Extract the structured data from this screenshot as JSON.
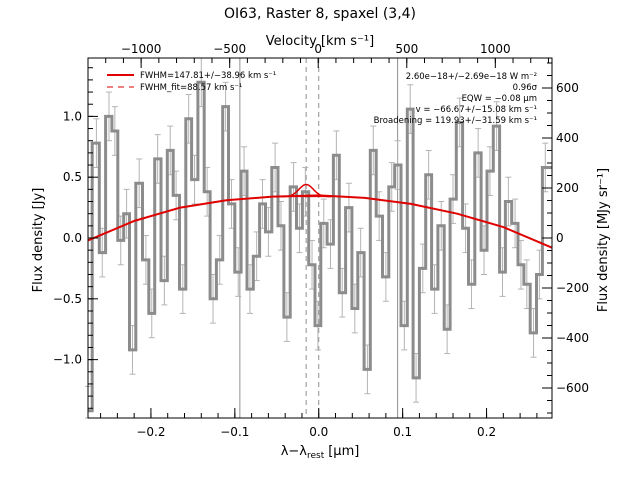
{
  "chart_data": {
    "type": "line",
    "title": "OI63, Raster 8, spaxel (3,4)",
    "xlabel": "λ−λ",
    "xlabel_sub": "rest",
    "xlabel_unit": "[μm]",
    "ylabel": "Flux density [Jy]",
    "ylabel_right": "Flux density [MJy sr⁻¹]",
    "top_xlabel": "Velocity [km s⁻¹]",
    "xlim": [
      -0.275,
      0.278
    ],
    "ylim": [
      -1.48,
      1.48
    ],
    "right_ylim": [
      -720,
      720
    ],
    "top_xlim": [
      -1300,
      1320
    ],
    "x_ticks": [
      -0.2,
      -0.1,
      0.0,
      0.1,
      0.2
    ],
    "x_tick_labels": [
      "−0.2",
      "−0.1",
      "0.0",
      "0.1",
      "0.2"
    ],
    "y_ticks": [
      -1.0,
      -0.5,
      0.0,
      0.5,
      1.0
    ],
    "y_tick_labels": [
      "−1.0",
      "−0.5",
      "0.0",
      "0.5",
      "1.0"
    ],
    "right_ticks": [
      -600,
      -400,
      -200,
      0,
      200,
      400,
      600
    ],
    "right_tick_labels": [
      "−600",
      "−400",
      "−200",
      "0",
      "200",
      "400",
      "600"
    ],
    "top_ticks": [
      -1000,
      -500,
      0,
      500,
      1000
    ],
    "top_tick_labels": [
      "−1000",
      "−500",
      "0",
      "500",
      "1000"
    ],
    "vlines_solid": [
      -0.094,
      0.094
    ],
    "vlines_dashed": [
      -0.015,
      0.0
    ],
    "colors": {
      "spectrum": "#8c8c8c",
      "error": "#b4b4b4",
      "fit": "#e00000",
      "guide": "#909090"
    },
    "legend": {
      "position": "top-left",
      "entries": [
        {
          "label": "FWHM=147.81+/−38.96 km s⁻¹",
          "style": "solid"
        },
        {
          "label": "FWHM_fit=88.57 km s⁻¹",
          "style": "dashed"
        }
      ]
    },
    "annotations": [
      "2.60e−18+/−2.69e−18 W m⁻²",
      "0.96σ",
      "EQW = −0.08 μm",
      "v = −66.67+/−15.08 km s⁻¹",
      "Broadening = 119.93+/−31.59 km s⁻¹"
    ],
    "spectrum": {
      "name": "spectrum",
      "error": 0.2,
      "x": [
        -0.275,
        -0.265,
        -0.258,
        -0.25,
        -0.243,
        -0.236,
        -0.229,
        -0.222,
        -0.214,
        -0.206,
        -0.199,
        -0.192,
        -0.184,
        -0.177,
        -0.17,
        -0.162,
        -0.155,
        -0.148,
        -0.14,
        -0.133,
        -0.126,
        -0.118,
        -0.111,
        -0.104,
        -0.096,
        -0.089,
        -0.082,
        -0.074,
        -0.067,
        -0.06,
        -0.052,
        -0.045,
        -0.038,
        -0.03,
        -0.023,
        -0.016,
        -0.008,
        -0.001,
        0.006,
        0.014,
        0.021,
        0.028,
        0.036,
        0.043,
        0.05,
        0.058,
        0.065,
        0.072,
        0.08,
        0.087,
        0.094,
        0.102,
        0.109,
        0.116,
        0.124,
        0.131,
        0.138,
        0.146,
        0.153,
        0.16,
        0.168,
        0.175,
        0.182,
        0.19,
        0.197,
        0.204,
        0.212,
        0.219,
        0.226,
        0.234,
        0.241,
        0.248,
        0.256,
        0.263,
        0.27
      ],
      "y": [
        -1.42,
        0.78,
        -0.12,
        1.0,
        0.88,
        -0.02,
        0.2,
        -0.92,
        0.45,
        -0.18,
        -0.62,
        0.65,
        -0.35,
        0.72,
        0.35,
        -0.42,
        0.98,
        0.48,
        1.28,
        0.38,
        -0.5,
        -0.18,
        1.08,
        0.28,
        -0.28,
        0.55,
        -0.42,
        -0.15,
        0.28,
        0.05,
        0.58,
        0.1,
        -0.65,
        0.42,
        0.08,
        0.38,
        -0.22,
        -0.72,
        0.12,
        -0.05,
        0.68,
        -0.45,
        0.25,
        -0.58,
        -0.12,
        -1.08,
        0.72,
        0.18,
        -0.32,
        0.42,
        0.6,
        -0.72,
        1.06,
        -1.15,
        -0.25,
        0.52,
        -0.42,
        0.1,
        -0.75,
        0.32,
        0.95,
        0.08,
        -0.38,
        0.7,
        -0.1,
        0.55,
        0.92,
        -0.28,
        0.3,
        0.12,
        -0.22,
        -0.38,
        -0.78,
        -0.3,
        0.58
      ]
    },
    "continuum": {
      "name": "continuum",
      "x": [
        -0.275,
        -0.22,
        -0.165,
        -0.11,
        -0.055,
        0.0,
        0.055,
        0.11,
        0.165,
        0.22,
        0.278
      ],
      "y": [
        -0.02,
        0.14,
        0.25,
        0.31,
        0.34,
        0.35,
        0.33,
        0.28,
        0.2,
        0.09,
        -0.08
      ]
    },
    "gaussian": {
      "center": -0.015,
      "amplitude": 0.1,
      "fwhm": 0.02,
      "base_y": 0.34,
      "x_range": [
        -0.045,
        0.015
      ]
    }
  }
}
